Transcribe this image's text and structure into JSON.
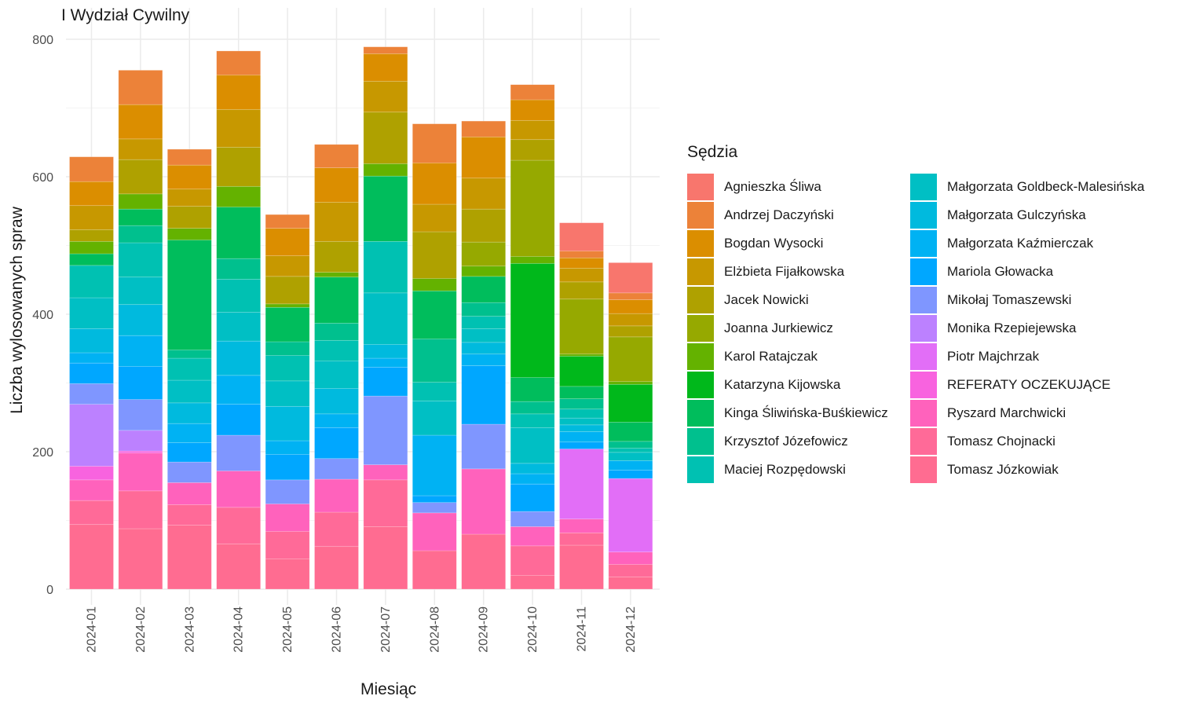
{
  "chart_data": {
    "type": "bar",
    "stacked": true,
    "title": "I Wydział Cywilny",
    "xlabel": "Miesiąc",
    "ylabel": "Liczba wylosowanych spraw",
    "ylim": [
      0,
      840
    ],
    "y_ticks": [
      0,
      200,
      400,
      600,
      800
    ],
    "grid": true,
    "legend_title": "Sędzia",
    "legend_position": "right",
    "categories": [
      "2024-01",
      "2024-02",
      "2024-03",
      "2024-04",
      "2024-05",
      "2024-06",
      "2024-07",
      "2024-08",
      "2024-09",
      "2024-10",
      "2024-11",
      "2024-12"
    ],
    "series": [
      {
        "name": "Agnieszka Śliwa",
        "color": "#F8766D",
        "values": [
          0,
          0,
          0,
          0,
          0,
          0,
          0,
          0,
          0,
          0,
          41,
          44
        ]
      },
      {
        "name": "Andrzej Daczyński",
        "color": "#EC8239",
        "values": [
          36,
          50,
          23,
          35,
          20,
          34,
          10,
          57,
          23,
          22,
          10,
          10
        ]
      },
      {
        "name": "Bogdan Wysocki",
        "color": "#DB8E00",
        "values": [
          35,
          50,
          35,
          50,
          40,
          50,
          40,
          60,
          60,
          30,
          15,
          20
        ]
      },
      {
        "name": "Elżbieta Fijałkowska",
        "color": "#C79800",
        "values": [
          35,
          30,
          25,
          55,
          30,
          57,
          45,
          40,
          45,
          28,
          20,
          18
        ]
      },
      {
        "name": "Jacek Nowicki",
        "color": "#AFA100",
        "values": [
          17,
          50,
          32,
          57,
          40,
          45,
          75,
          68,
          48,
          30,
          25,
          16
        ]
      },
      {
        "name": "Joanna Jurkiewicz",
        "color": "#96A900",
        "values": [
          0,
          0,
          0,
          0,
          0,
          0,
          0,
          0,
          35,
          140,
          80,
          65
        ]
      },
      {
        "name": "Karol Ratajczak",
        "color": "#64B200",
        "values": [
          18,
          22,
          17,
          30,
          5,
          7,
          18,
          18,
          15,
          10,
          3,
          4
        ]
      },
      {
        "name": "Katarzyna Kijowska",
        "color": "#00B81B",
        "values": [
          0,
          0,
          0,
          0,
          0,
          0,
          0,
          0,
          0,
          166,
          44,
          55
        ]
      },
      {
        "name": "Kinga Śliwińska-Buśkiewicz",
        "color": "#00BD5C",
        "values": [
          17,
          24,
          160,
          75,
          50,
          67,
          95,
          70,
          38,
          35,
          18,
          28
        ]
      },
      {
        "name": "Krzysztof Józefowicz",
        "color": "#00C08E",
        "values": [
          0,
          25,
          12,
          30,
          20,
          25,
          0,
          63,
          20,
          18,
          15,
          10
        ]
      },
      {
        "name": "Maciej Rozpędowski",
        "color": "#00C1B2",
        "values": [
          47,
          50,
          32,
          48,
          37,
          30,
          75,
          27,
          18,
          20,
          13,
          6
        ]
      },
      {
        "name": "Małgorzata Goldbeck-Malesińska",
        "color": "#00BFC4",
        "values": [
          45,
          40,
          33,
          42,
          37,
          40,
          75,
          50,
          20,
          52,
          10,
          12
        ]
      },
      {
        "name": "Małgorzata Gulczyńska",
        "color": "#00BADE",
        "values": [
          35,
          45,
          30,
          50,
          50,
          37,
          20,
          0,
          17,
          15,
          10,
          0
        ]
      },
      {
        "name": "Małgorzata Kaźmierczak",
        "color": "#00B2F3",
        "values": [
          15,
          45,
          28,
          42,
          20,
          20,
          13,
          88,
          17,
          15,
          15,
          14
        ]
      },
      {
        "name": "Mariola Głowacka",
        "color": "#00A7FF",
        "values": [
          30,
          48,
          28,
          45,
          37,
          45,
          42,
          10,
          85,
          40,
          10,
          12
        ]
      },
      {
        "name": "Mikołaj Tomaszewski",
        "color": "#7F96FF",
        "values": [
          30,
          45,
          30,
          52,
          35,
          30,
          100,
          15,
          65,
          22,
          0,
          0
        ]
      },
      {
        "name": "Monika Rzepiejewska",
        "color": "#BC81FF",
        "values": [
          90,
          30,
          0,
          0,
          0,
          0,
          0,
          0,
          0,
          0,
          0,
          0
        ]
      },
      {
        "name": "Piotr Majchrzak",
        "color": "#E26EF7",
        "values": [
          0,
          0,
          0,
          0,
          0,
          0,
          0,
          0,
          0,
          0,
          102,
          107
        ]
      },
      {
        "name": "REFERATY OCZEKUJĄCE",
        "color": "#F863DF",
        "values": [
          20,
          3,
          0,
          0,
          0,
          0,
          0,
          0,
          0,
          0,
          0,
          0
        ]
      },
      {
        "name": "Ryszard Marchwicki",
        "color": "#FF62BC",
        "values": [
          30,
          55,
          32,
          53,
          40,
          48,
          22,
          55,
          95,
          28,
          20,
          18
        ]
      },
      {
        "name": "Tomasz Chojnacki",
        "color": "#FF6A98",
        "values": [
          35,
          55,
          30,
          53,
          40,
          50,
          68,
          0,
          0,
          43,
          18,
          18
        ]
      },
      {
        "name": "Tomasz Józkowiak",
        "color": "#FF6C91",
        "values": [
          94,
          88,
          93,
          66,
          44,
          62,
          91,
          56,
          80,
          20,
          64,
          18
        ]
      }
    ]
  }
}
